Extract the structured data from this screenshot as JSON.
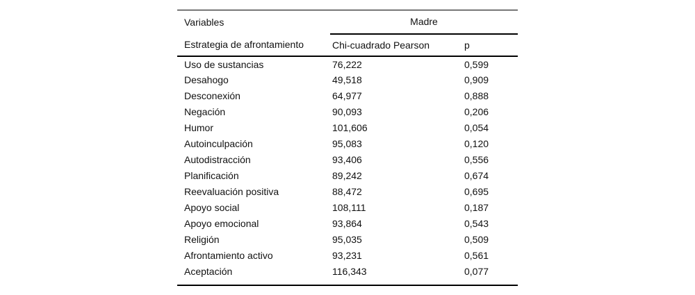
{
  "colors": {
    "background": "#ffffff",
    "text": "#111111",
    "rule": "#000000"
  },
  "table": {
    "header": {
      "col1_title": "Variables",
      "group_title": "Madre",
      "col1_subtitle": "Estrategia de afrontamiento",
      "col2_title": "Chi-cuadrado Pearson",
      "col3_title": "p"
    },
    "rows": [
      {
        "strategy": "Uso de sustancias",
        "chi": "76,222",
        "p": "0,599"
      },
      {
        "strategy": "Desahogo",
        "chi": "49,518",
        "p": "0,909"
      },
      {
        "strategy": "Desconexión",
        "chi": "64,977",
        "p": "0,888"
      },
      {
        "strategy": "Negación",
        "chi": "90,093",
        "p": "0,206"
      },
      {
        "strategy": "Humor",
        "chi": "101,606",
        "p": "0,054"
      },
      {
        "strategy": "Autoinculpación",
        "chi": "95,083",
        "p": "0,120"
      },
      {
        "strategy": "Autodistracción",
        "chi": "93,406",
        "p": "0,556"
      },
      {
        "strategy": "Planificación",
        "chi": "89,242",
        "p": "0,674"
      },
      {
        "strategy": "Reevaluación positiva",
        "chi": "88,472",
        "p": "0,695"
      },
      {
        "strategy": "Apoyo social",
        "chi": "108,111",
        "p": "0,187"
      },
      {
        "strategy": "Apoyo emocional",
        "chi": "93,864",
        "p": "0,543"
      },
      {
        "strategy": "Religión",
        "chi": "95,035",
        "p": "0,509"
      },
      {
        "strategy": "Afrontamiento activo",
        "chi": "93,231",
        "p": "0,561"
      },
      {
        "strategy": "Aceptación",
        "chi": "116,343",
        "p": "0,077"
      }
    ]
  }
}
